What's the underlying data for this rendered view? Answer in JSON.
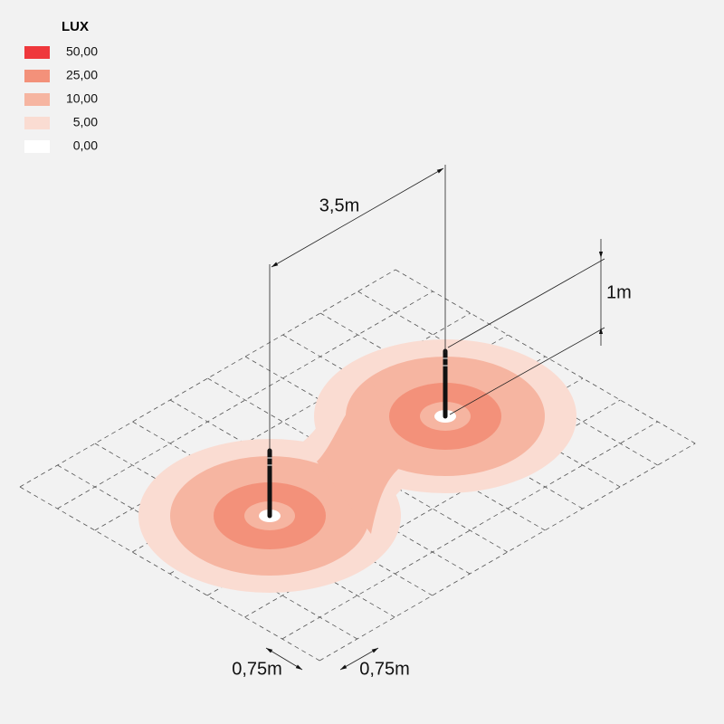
{
  "legend": {
    "title": "LUX",
    "items": [
      {
        "label": "50,00",
        "color": "#ef383c"
      },
      {
        "label": "25,00",
        "color": "#f3917a"
      },
      {
        "label": "10,00",
        "color": "#f6b5a1"
      },
      {
        "label": "5,00",
        "color": "#fadcd2"
      },
      {
        "label": "0,00",
        "color": "#ffffff"
      }
    ]
  },
  "dimensions": {
    "spacing": "3,5m",
    "height": "1m",
    "cell_a": "0,75m",
    "cell_b": "0,75m"
  }
}
